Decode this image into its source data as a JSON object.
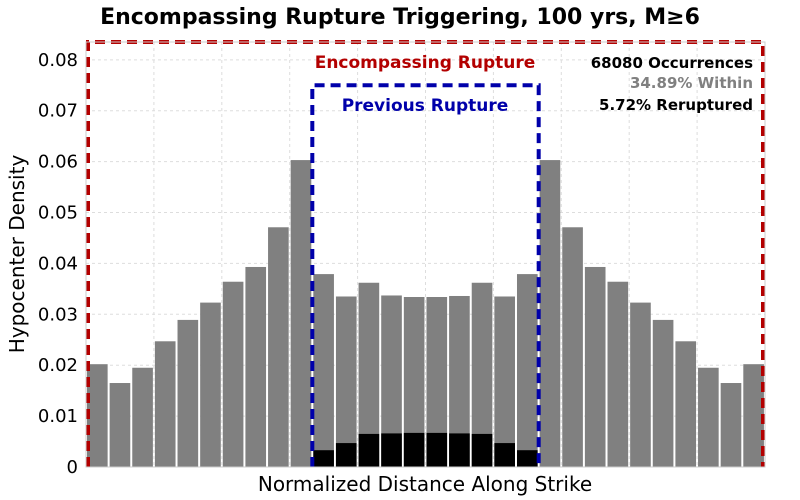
{
  "chart_data": {
    "type": "bar",
    "title": "Encompassing Rupture Triggering, 100 yrs, M≥6",
    "xlabel": "Normalized Distance Along Strike",
    "ylabel": "Hypocenter Density",
    "ylim": [
      0,
      0.0835
    ],
    "xlim": [
      0,
      1
    ],
    "y_ticks": [
      "0",
      "0.01",
      "0.02",
      "0.03",
      "0.04",
      "0.05",
      "0.06",
      "0.07",
      "0.08"
    ],
    "grid": true,
    "bin_edges_start": 0,
    "bin_width": 0.03333,
    "series": [
      {
        "color": "#808080",
        "values": [
          0.0202,
          0.0165,
          0.0195,
          0.0247,
          0.0289,
          0.0323,
          0.0364,
          0.0393,
          0.0471,
          0.0603,
          0.0379,
          0.0335,
          0.0362,
          0.0337,
          0.0334,
          0.0334,
          0.0336,
          0.0362,
          0.0335,
          0.0379,
          0.0603,
          0.0471,
          0.0393,
          0.0364,
          0.0323,
          0.0289,
          0.0247,
          0.0195,
          0.0165,
          0.0202
        ]
      },
      {
        "color": "#000000",
        "values": [
          0,
          0,
          0,
          0,
          0,
          0,
          0,
          0,
          0,
          0,
          0.0033,
          0.0047,
          0.0065,
          0.0066,
          0.0067,
          0.0067,
          0.0066,
          0.0065,
          0.0047,
          0.0033,
          0,
          0,
          0,
          0,
          0,
          0,
          0,
          0,
          0,
          0
        ]
      }
    ],
    "annotations": {
      "encompassing_label": "Encompassing Rupture",
      "encompassing_color": "#b30000",
      "encompassing_range": [
        0,
        1
      ],
      "encompassing_top": 0.0835,
      "previous_label": "Previous Rupture",
      "previous_color": "#0000aa",
      "previous_range": [
        0.3333,
        0.6667
      ],
      "previous_top": 0.075,
      "occurrences": "68080 Occurrences",
      "within": "34.89% Within",
      "within_color": "#808080",
      "reruptured": "5.72% Reruptured"
    }
  }
}
